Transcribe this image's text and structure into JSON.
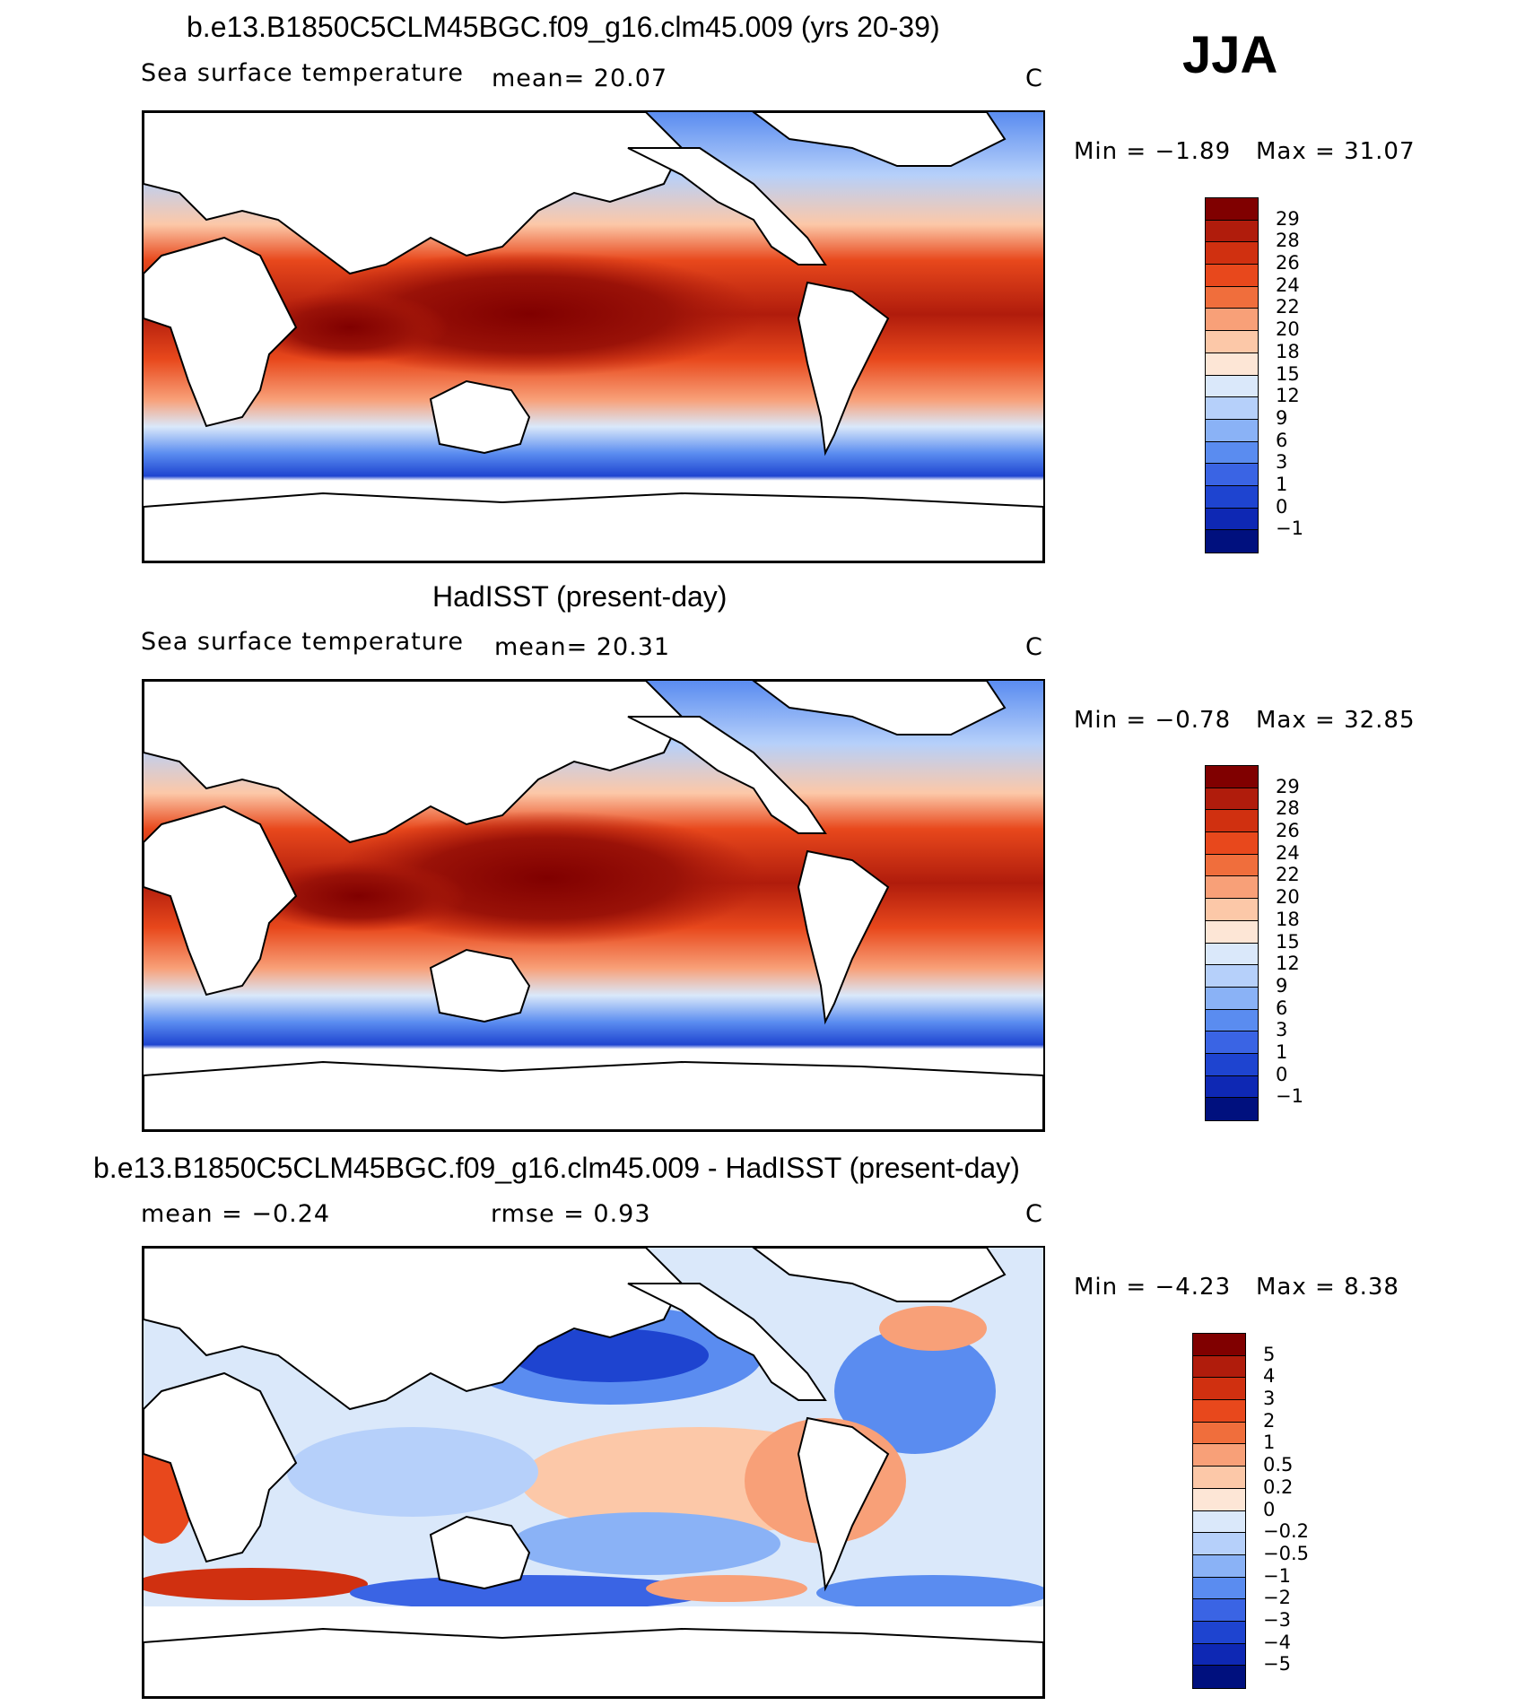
{
  "season": "JJA",
  "units": "C",
  "panels": [
    {
      "title": "b.e13.B1850C5CLM45BGC.f09_g16.clm45.009 (yrs 20-39)",
      "variable": "Sea surface temperature",
      "mean_text": "mean=   20.07",
      "units": "C",
      "min_text": "Min  =   −1.89",
      "max_text": "Max  =   31.07",
      "colorbar": {
        "labels": [
          "29",
          "28",
          "26",
          "24",
          "22",
          "20",
          "18",
          "15",
          "12",
          "9",
          "6",
          "3",
          "1",
          "0",
          "−1"
        ],
        "colors": [
          "#800000",
          "#b01c0c",
          "#d03010",
          "#e8481c",
          "#f06e3c",
          "#f8a078",
          "#fcc8a8",
          "#fde6d6",
          "#dae8fa",
          "#b6d0fa",
          "#8ab2f6",
          "#5a8cf0",
          "#3a64e4",
          "#1e44d0",
          "#0e28b4",
          "#00107e"
        ]
      }
    },
    {
      "title": "HadISST (present-day)",
      "variable": "Sea surface temperature",
      "mean_text": "mean=   20.31",
      "units": "C",
      "min_text": "Min  =   −0.78",
      "max_text": "Max  =   32.85",
      "colorbar": {
        "labels": [
          "29",
          "28",
          "26",
          "24",
          "22",
          "20",
          "18",
          "15",
          "12",
          "9",
          "6",
          "3",
          "1",
          "0",
          "−1"
        ],
        "colors": [
          "#800000",
          "#b01c0c",
          "#d03010",
          "#e8481c",
          "#f06e3c",
          "#f8a078",
          "#fcc8a8",
          "#fde6d6",
          "#dae8fa",
          "#b6d0fa",
          "#8ab2f6",
          "#5a8cf0",
          "#3a64e4",
          "#1e44d0",
          "#0e28b4",
          "#00107e"
        ]
      }
    },
    {
      "title": "b.e13.B1850C5CLM45BGC.f09_g16.clm45.009 - HadISST (present-day)",
      "mean_text": "mean  =   −0.24",
      "rmse_text": "rmse  =     0.93",
      "units": "C",
      "min_text": "Min  =   −4.23",
      "max_text": "Max  =     8.38",
      "colorbar": {
        "labels": [
          "5",
          "4",
          "3",
          "2",
          "1",
          "0.5",
          "0.2",
          "0",
          "−0.2",
          "−0.5",
          "−1",
          "−2",
          "−3",
          "−4",
          "−5"
        ],
        "colors": [
          "#800000",
          "#b01c0c",
          "#d03010",
          "#e8481c",
          "#f06e3c",
          "#f8a078",
          "#fcc8a8",
          "#fde6d6",
          "#dae8fa",
          "#b6d0fa",
          "#8ab2f6",
          "#5a8cf0",
          "#3a64e4",
          "#1e44d0",
          "#0e28b4",
          "#00107e"
        ]
      }
    }
  ]
}
